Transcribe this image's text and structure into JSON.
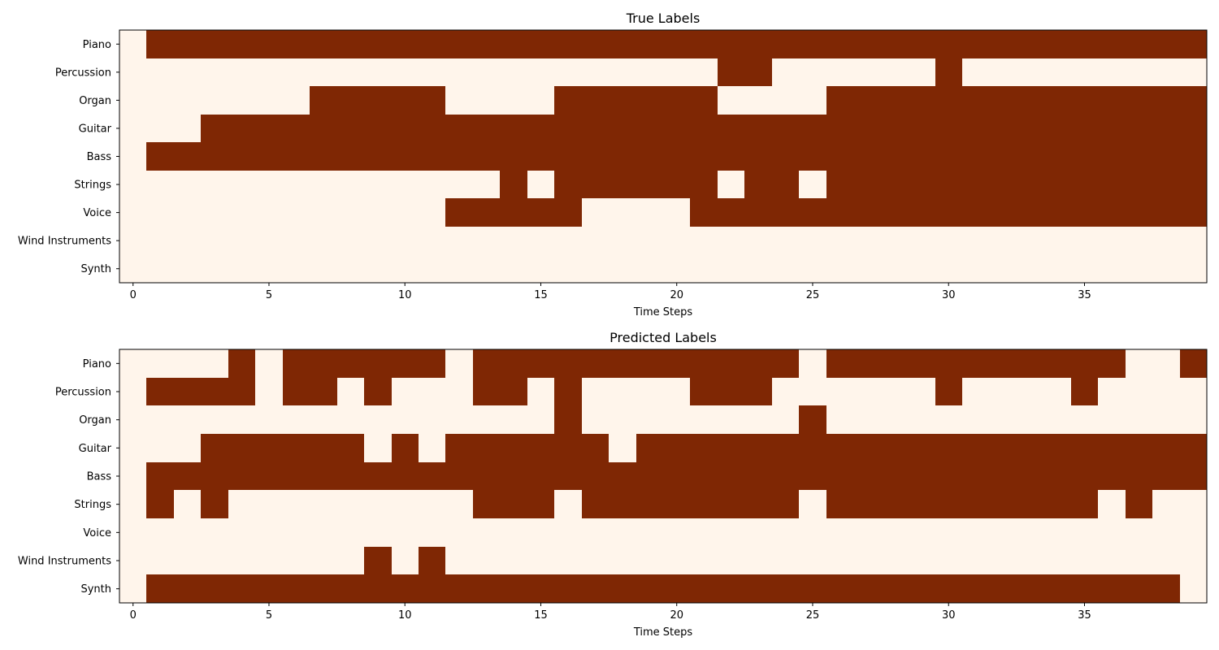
{
  "colors": {
    "on": "#7f2704",
    "off": "#fff5eb",
    "axis": "#000000"
  },
  "chart_data": [
    {
      "type": "heatmap",
      "title": "True Labels",
      "xlabel": "Time Steps",
      "ylabel": "",
      "xticks": [
        0,
        5,
        10,
        15,
        20,
        25,
        30,
        35
      ],
      "n_steps": 40,
      "rows": [
        "Piano",
        "Percussion",
        "Organ",
        "Guitar",
        "Bass",
        "Strings",
        "Voice",
        "Wind Instruments",
        "Synth"
      ],
      "values": [
        [
          0,
          1,
          1,
          1,
          1,
          1,
          1,
          1,
          1,
          1,
          1,
          1,
          1,
          1,
          1,
          1,
          1,
          1,
          1,
          1,
          1,
          1,
          1,
          1,
          1,
          1,
          1,
          1,
          1,
          1,
          1,
          1,
          1,
          1,
          1,
          1,
          1,
          1,
          1,
          1
        ],
        [
          0,
          0,
          0,
          0,
          0,
          0,
          0,
          0,
          0,
          0,
          0,
          0,
          0,
          0,
          0,
          0,
          0,
          0,
          0,
          0,
          0,
          0,
          1,
          1,
          0,
          0,
          0,
          0,
          0,
          0,
          1,
          0,
          0,
          0,
          0,
          0,
          0,
          0,
          0,
          0
        ],
        [
          0,
          0,
          0,
          0,
          0,
          0,
          0,
          1,
          1,
          1,
          1,
          1,
          0,
          0,
          0,
          0,
          1,
          1,
          1,
          1,
          1,
          1,
          0,
          0,
          0,
          0,
          1,
          1,
          1,
          1,
          1,
          1,
          1,
          1,
          1,
          1,
          1,
          1,
          1,
          1
        ],
        [
          0,
          0,
          0,
          1,
          1,
          1,
          1,
          1,
          1,
          1,
          1,
          1,
          1,
          1,
          1,
          1,
          1,
          1,
          1,
          1,
          1,
          1,
          1,
          1,
          1,
          1,
          1,
          1,
          1,
          1,
          1,
          1,
          1,
          1,
          1,
          1,
          1,
          1,
          1,
          1
        ],
        [
          0,
          1,
          1,
          1,
          1,
          1,
          1,
          1,
          1,
          1,
          1,
          1,
          1,
          1,
          1,
          1,
          1,
          1,
          1,
          1,
          1,
          1,
          1,
          1,
          1,
          1,
          1,
          1,
          1,
          1,
          1,
          1,
          1,
          1,
          1,
          1,
          1,
          1,
          1,
          1
        ],
        [
          0,
          0,
          0,
          0,
          0,
          0,
          0,
          0,
          0,
          0,
          0,
          0,
          0,
          0,
          1,
          0,
          1,
          1,
          1,
          1,
          1,
          1,
          0,
          1,
          1,
          0,
          1,
          1,
          1,
          1,
          1,
          1,
          1,
          1,
          1,
          1,
          1,
          1,
          1,
          1
        ],
        [
          0,
          0,
          0,
          0,
          0,
          0,
          0,
          0,
          0,
          0,
          0,
          0,
          1,
          1,
          1,
          1,
          1,
          0,
          0,
          0,
          0,
          1,
          1,
          1,
          1,
          1,
          1,
          1,
          1,
          1,
          1,
          1,
          1,
          1,
          1,
          1,
          1,
          1,
          1,
          1
        ],
        [
          0,
          0,
          0,
          0,
          0,
          0,
          0,
          0,
          0,
          0,
          0,
          0,
          0,
          0,
          0,
          0,
          0,
          0,
          0,
          0,
          0,
          0,
          0,
          0,
          0,
          0,
          0,
          0,
          0,
          0,
          0,
          0,
          0,
          0,
          0,
          0,
          0,
          0,
          0,
          0
        ],
        [
          0,
          0,
          0,
          0,
          0,
          0,
          0,
          0,
          0,
          0,
          0,
          0,
          0,
          0,
          0,
          0,
          0,
          0,
          0,
          0,
          0,
          0,
          0,
          0,
          0,
          0,
          0,
          0,
          0,
          0,
          0,
          0,
          0,
          0,
          0,
          0,
          0,
          0,
          0,
          0
        ]
      ]
    },
    {
      "type": "heatmap",
      "title": "Predicted Labels",
      "xlabel": "Time Steps",
      "ylabel": "",
      "xticks": [
        0,
        5,
        10,
        15,
        20,
        25,
        30,
        35
      ],
      "n_steps": 40,
      "rows": [
        "Piano",
        "Percussion",
        "Organ",
        "Guitar",
        "Bass",
        "Strings",
        "Voice",
        "Wind Instruments",
        "Synth"
      ],
      "values": [
        [
          0,
          0,
          0,
          0,
          1,
          0,
          1,
          1,
          1,
          1,
          1,
          1,
          0,
          1,
          1,
          1,
          1,
          1,
          1,
          1,
          1,
          1,
          1,
          1,
          1,
          0,
          1,
          1,
          1,
          1,
          1,
          1,
          1,
          1,
          1,
          1,
          1,
          0,
          0,
          1
        ],
        [
          0,
          1,
          1,
          1,
          1,
          0,
          1,
          1,
          0,
          1,
          0,
          0,
          0,
          1,
          1,
          0,
          1,
          0,
          0,
          0,
          0,
          1,
          1,
          1,
          0,
          0,
          0,
          0,
          0,
          0,
          1,
          0,
          0,
          0,
          0,
          1,
          0,
          0,
          0,
          0
        ],
        [
          0,
          0,
          0,
          0,
          0,
          0,
          0,
          0,
          0,
          0,
          0,
          0,
          0,
          0,
          0,
          0,
          1,
          0,
          0,
          0,
          0,
          0,
          0,
          0,
          0,
          1,
          0,
          0,
          0,
          0,
          0,
          0,
          0,
          0,
          0,
          0,
          0,
          0,
          0,
          0
        ],
        [
          0,
          0,
          0,
          1,
          1,
          1,
          1,
          1,
          1,
          0,
          1,
          0,
          1,
          1,
          1,
          1,
          1,
          1,
          0,
          1,
          1,
          1,
          1,
          1,
          1,
          1,
          1,
          1,
          1,
          1,
          1,
          1,
          1,
          1,
          1,
          1,
          1,
          1,
          1,
          1
        ],
        [
          0,
          1,
          1,
          1,
          1,
          1,
          1,
          1,
          1,
          1,
          1,
          1,
          1,
          1,
          1,
          1,
          1,
          1,
          1,
          1,
          1,
          1,
          1,
          1,
          1,
          1,
          1,
          1,
          1,
          1,
          1,
          1,
          1,
          1,
          1,
          1,
          1,
          1,
          1,
          1
        ],
        [
          0,
          1,
          0,
          1,
          0,
          0,
          0,
          0,
          0,
          0,
          0,
          0,
          0,
          1,
          1,
          1,
          0,
          1,
          1,
          1,
          1,
          1,
          1,
          1,
          1,
          0,
          1,
          1,
          1,
          1,
          1,
          1,
          1,
          1,
          1,
          1,
          0,
          1,
          0,
          0
        ],
        [
          0,
          0,
          0,
          0,
          0,
          0,
          0,
          0,
          0,
          0,
          0,
          0,
          0,
          0,
          0,
          0,
          0,
          0,
          0,
          0,
          0,
          0,
          0,
          0,
          0,
          0,
          0,
          0,
          0,
          0,
          0,
          0,
          0,
          0,
          0,
          0,
          0,
          0,
          0,
          0
        ],
        [
          0,
          0,
          0,
          0,
          0,
          0,
          0,
          0,
          0,
          1,
          0,
          1,
          0,
          0,
          0,
          0,
          0,
          0,
          0,
          0,
          0,
          0,
          0,
          0,
          0,
          0,
          0,
          0,
          0,
          0,
          0,
          0,
          0,
          0,
          0,
          0,
          0,
          0,
          0,
          0
        ],
        [
          0,
          1,
          1,
          1,
          1,
          1,
          1,
          1,
          1,
          1,
          1,
          1,
          1,
          1,
          1,
          1,
          1,
          1,
          1,
          1,
          1,
          1,
          1,
          1,
          1,
          1,
          1,
          1,
          1,
          1,
          1,
          1,
          1,
          1,
          1,
          1,
          1,
          1,
          1,
          0
        ]
      ]
    }
  ]
}
